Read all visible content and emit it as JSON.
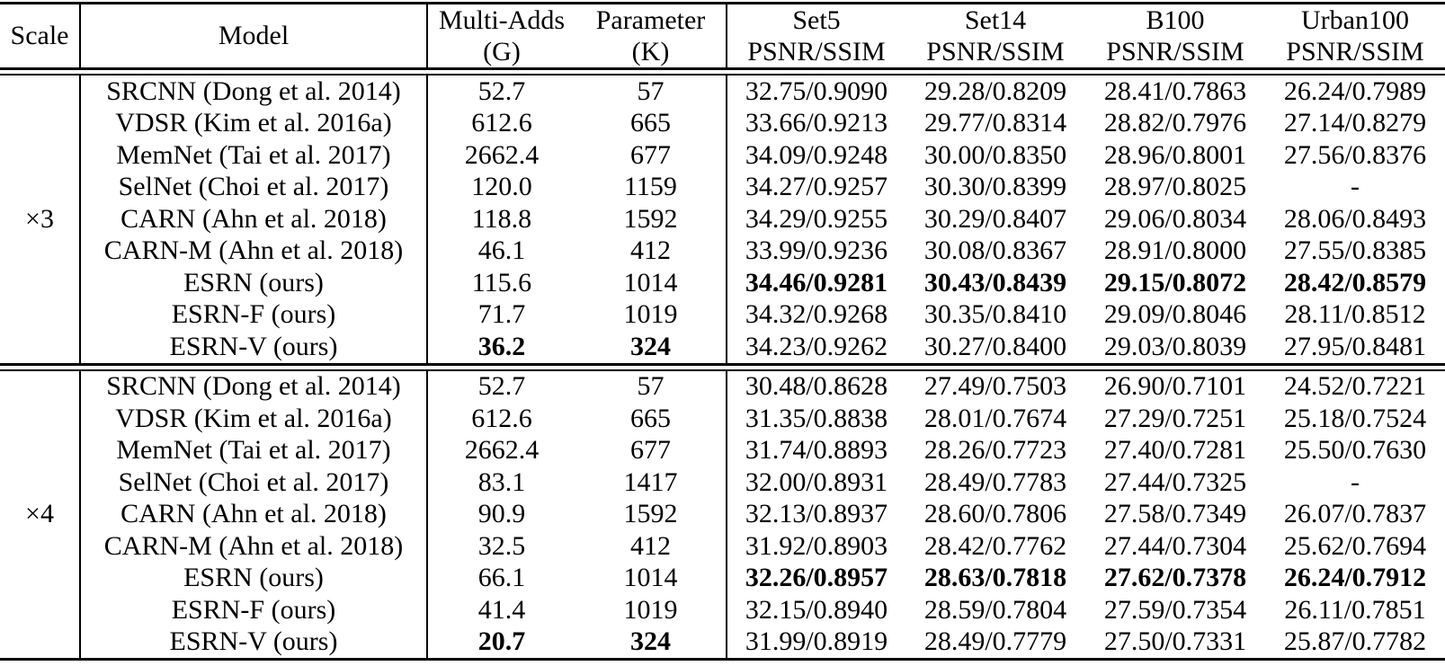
{
  "table": {
    "headers": {
      "scale": "Scale",
      "model": "Model",
      "multi_adds_line1": "Multi-Adds",
      "multi_adds_line2": "(G)",
      "parameter_line1": "Parameter",
      "parameter_line2": "(K)",
      "datasets": [
        {
          "name": "Set5",
          "metric": "PSNR/SSIM"
        },
        {
          "name": "Set14",
          "metric": "PSNR/SSIM"
        },
        {
          "name": "B100",
          "metric": "PSNR/SSIM"
        },
        {
          "name": "Urban100",
          "metric": "PSNR/SSIM"
        }
      ]
    },
    "text_color": "#000000",
    "background_color": "#ffffff",
    "sections": [
      {
        "scale": "×3",
        "rows": [
          {
            "model": "SRCNN (Dong et al. 2014)",
            "multi_adds": "52.7",
            "params": "57",
            "set5": "32.75/0.9090",
            "set14": "29.28/0.8209",
            "b100": "28.41/0.7863",
            "urban100": "26.24/0.7989",
            "bold_results": false,
            "bold_cost": false
          },
          {
            "model": "VDSR (Kim et al. 2016a)",
            "multi_adds": "612.6",
            "params": "665",
            "set5": "33.66/0.9213",
            "set14": "29.77/0.8314",
            "b100": "28.82/0.7976",
            "urban100": "27.14/0.8279",
            "bold_results": false,
            "bold_cost": false
          },
          {
            "model": "MemNet (Tai et al. 2017)",
            "multi_adds": "2662.4",
            "params": "677",
            "set5": "34.09/0.9248",
            "set14": "30.00/0.8350",
            "b100": "28.96/0.8001",
            "urban100": "27.56/0.8376",
            "bold_results": false,
            "bold_cost": false
          },
          {
            "model": "SelNet (Choi et al. 2017)",
            "multi_adds": "120.0",
            "params": "1159",
            "set5": "34.27/0.9257",
            "set14": "30.30/0.8399",
            "b100": "28.97/0.8025",
            "urban100": "-",
            "bold_results": false,
            "bold_cost": false
          },
          {
            "model": "CARN (Ahn et al. 2018)",
            "multi_adds": "118.8",
            "params": "1592",
            "set5": "34.29/0.9255",
            "set14": "30.29/0.8407",
            "b100": "29.06/0.8034",
            "urban100": "28.06/0.8493",
            "bold_results": false,
            "bold_cost": false
          },
          {
            "model": "CARN-M (Ahn et al. 2018)",
            "multi_adds": "46.1",
            "params": "412",
            "set5": "33.99/0.9236",
            "set14": "30.08/0.8367",
            "b100": "28.91/0.8000",
            "urban100": "27.55/0.8385",
            "bold_results": false,
            "bold_cost": false
          },
          {
            "model": "ESRN (ours)",
            "multi_adds": "115.6",
            "params": "1014",
            "set5": "34.46/0.9281",
            "set14": "30.43/0.8439",
            "b100": "29.15/0.8072",
            "urban100": "28.42/0.8579",
            "bold_results": true,
            "bold_cost": false
          },
          {
            "model": "ESRN-F (ours)",
            "multi_adds": "71.7",
            "params": "1019",
            "set5": "34.32/0.9268",
            "set14": "30.35/0.8410",
            "b100": "29.09/0.8046",
            "urban100": "28.11/0.8512",
            "bold_results": false,
            "bold_cost": false
          },
          {
            "model": "ESRN-V (ours)",
            "multi_adds": "36.2",
            "params": "324",
            "set5": "34.23/0.9262",
            "set14": "30.27/0.8400",
            "b100": "29.03/0.8039",
            "urban100": "27.95/0.8481",
            "bold_results": false,
            "bold_cost": true
          }
        ]
      },
      {
        "scale": "×4",
        "rows": [
          {
            "model": "SRCNN (Dong et al. 2014)",
            "multi_adds": "52.7",
            "params": "57",
            "set5": "30.48/0.8628",
            "set14": "27.49/0.7503",
            "b100": "26.90/0.7101",
            "urban100": "24.52/0.7221",
            "bold_results": false,
            "bold_cost": false
          },
          {
            "model": "VDSR (Kim et al. 2016a)",
            "multi_adds": "612.6",
            "params": "665",
            "set5": "31.35/0.8838",
            "set14": "28.01/0.7674",
            "b100": "27.29/0.7251",
            "urban100": "25.18/0.7524",
            "bold_results": false,
            "bold_cost": false
          },
          {
            "model": "MemNet (Tai et al. 2017)",
            "multi_adds": "2662.4",
            "params": "677",
            "set5": "31.74/0.8893",
            "set14": "28.26/0.7723",
            "b100": "27.40/0.7281",
            "urban100": "25.50/0.7630",
            "bold_results": false,
            "bold_cost": false
          },
          {
            "model": "SelNet (Choi et al. 2017)",
            "multi_adds": "83.1",
            "params": "1417",
            "set5": "32.00/0.8931",
            "set14": "28.49/0.7783",
            "b100": "27.44/0.7325",
            "urban100": "-",
            "bold_results": false,
            "bold_cost": false
          },
          {
            "model": "CARN (Ahn et al. 2018)",
            "multi_adds": "90.9",
            "params": "1592",
            "set5": "32.13/0.8937",
            "set14": "28.60/0.7806",
            "b100": "27.58/0.7349",
            "urban100": "26.07/0.7837",
            "bold_results": false,
            "bold_cost": false
          },
          {
            "model": "CARN-M (Ahn et al. 2018)",
            "multi_adds": "32.5",
            "params": "412",
            "set5": "31.92/0.8903",
            "set14": "28.42/0.7762",
            "b100": "27.44/0.7304",
            "urban100": "25.62/0.7694",
            "bold_results": false,
            "bold_cost": false
          },
          {
            "model": "ESRN (ours)",
            "multi_adds": "66.1",
            "params": "1014",
            "set5": "32.26/0.8957",
            "set14": "28.63/0.7818",
            "b100": "27.62/0.7378",
            "urban100": "26.24/0.7912",
            "bold_results": true,
            "bold_cost": false
          },
          {
            "model": "ESRN-F (ours)",
            "multi_adds": "41.4",
            "params": "1019",
            "set5": "32.15/0.8940",
            "set14": "28.59/0.7804",
            "b100": "27.59/0.7354",
            "urban100": "26.11/0.7851",
            "bold_results": false,
            "bold_cost": false
          },
          {
            "model": "ESRN-V (ours)",
            "multi_adds": "20.7",
            "params": "324",
            "set5": "31.99/0.8919",
            "set14": "28.49/0.7779",
            "b100": "27.50/0.7331",
            "urban100": "25.87/0.7782",
            "bold_results": false,
            "bold_cost": true
          }
        ]
      }
    ]
  }
}
